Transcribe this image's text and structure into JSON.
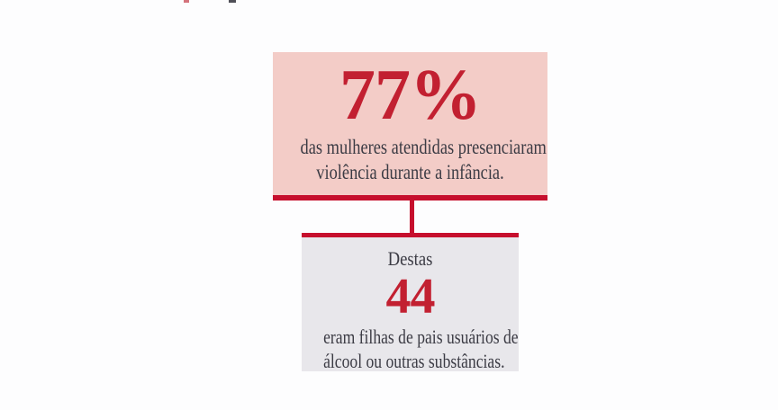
{
  "colors": {
    "page_bg": "#fdfdfe",
    "accent_red": "#c60f2d",
    "number_red": "#c22031",
    "pink_bg": "#f3ccc7",
    "gray_bg": "#e8e7eb",
    "text_dark": "#3b3b44"
  },
  "infographic": {
    "top_card": {
      "value": "77%",
      "lines": [
        "das mulheres atendidas presenciaram",
        "violência durante a infância."
      ]
    },
    "bottom_card": {
      "intro": "Destas",
      "value": "44",
      "lines": [
        "eram filhas de pais usuários de",
        "álcool ou outras substâncias."
      ]
    }
  }
}
